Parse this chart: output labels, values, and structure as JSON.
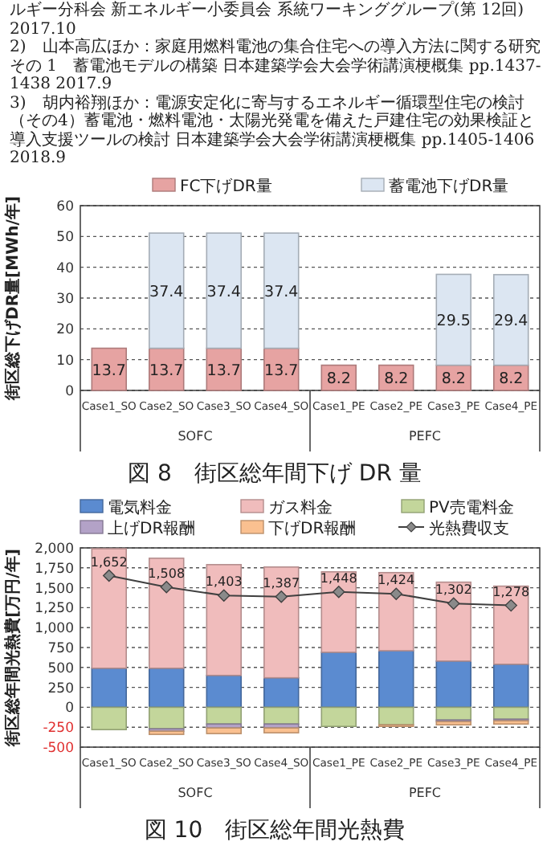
{
  "chart_data": [
    {
      "type": "other",
      "annotations": [
        "ルギー分科会 新エネルギー小委員会 系統ワーキンググループ(第 12回) 2017.10",
        "2)　山本高広ほか：家庭用燃料電池の集合住宅への導入方法に関する研究その 1　蓄電池モデルの構築 日本建築学会大会学術講演梗概集 pp.1437-1438 2017.9",
        "3)　胡内裕翔ほか：電源安定化に寄与するエネルギー循環型住宅の検討（その4）蓄電池・燃料電池・太陽光発電を備えた戸建住宅の効果検証と導入支援ツールの検討 日本建築学会大会学術講演梗概集 pp.1405-1406 2018.9"
      ]
    },
    {
      "type": "bar",
      "title": "図 8　街区総年間下げ DR 量",
      "ylabel": "街区総下げDR量[MWh/年]",
      "stacked": true,
      "data_labels": true,
      "grid": "y",
      "legend": "top",
      "categories": [
        "Case1_SO",
        "Case2_SO",
        "Case3_SO",
        "Case4_SO",
        "Case1_PE",
        "Case2_PE",
        "Case3_PE",
        "Case4_PE"
      ],
      "annotations": [
        "SOFC",
        "PEFC"
      ],
      "ylim": [
        0,
        60
      ],
      "yticks": [
        0,
        10,
        20,
        30,
        40,
        50,
        60
      ],
      "series": [
        {
          "name": "FC下げDR量",
          "color": "#e6a3a2",
          "values": [
            13.7,
            13.7,
            13.7,
            13.7,
            8.2,
            8.2,
            8.2,
            8.2
          ]
        },
        {
          "name": "蓄電池下げDR量",
          "color": "#dce6f2",
          "values": [
            null,
            37.4,
            37.4,
            37.4,
            null,
            null,
            29.5,
            29.4
          ]
        }
      ]
    },
    {
      "type": "bar",
      "title": "図 10　街区総年間光熱費",
      "ylabel": "街区総年間光熱費[万円/年]",
      "stacked": true,
      "grid": "y",
      "legend": "top",
      "categories": [
        "Case1_SO",
        "Case2_SO",
        "Case3_SO",
        "Case4_SO",
        "Case1_PE",
        "Case2_PE",
        "Case3_PE",
        "Case4_PE"
      ],
      "annotations": [
        "SOFC",
        "PEFC"
      ],
      "ylim": [
        -500,
        2000
      ],
      "yticks": [
        {
          "value": -500,
          "label": "-500"
        },
        {
          "value": -250,
          "label": "-250"
        },
        0,
        {
          "value": 250,
          "label": "250"
        },
        {
          "value": 500,
          "label": "500"
        },
        {
          "value": 750,
          "label": "750"
        },
        {
          "value": 1000,
          "label": "1,000"
        },
        {
          "value": 1250,
          "label": "1,250"
        },
        {
          "value": 1500,
          "label": "1,500"
        },
        {
          "value": 1750,
          "label": "1,750"
        },
        {
          "value": 2000,
          "label": "2,000"
        }
      ],
      "series": [
        {
          "name": "電気料金",
          "color": "#5b8bd0",
          "values": [
            490,
            490,
            400,
            370,
            690,
            710,
            580,
            540
          ]
        },
        {
          "name": "ガス料金",
          "color": "#f0bcbc",
          "values": [
            1500,
            1380,
            1390,
            1390,
            1010,
            980,
            990,
            980
          ]
        },
        {
          "name": "PV売電料金",
          "color": "#c3d69b",
          "values": [
            -280,
            -270,
            -210,
            -210,
            -240,
            -220,
            -160,
            -150
          ]
        },
        {
          "name": "上げDR報酬",
          "color": "#b3a2c7",
          "values": [
            null,
            -30,
            -50,
            -50,
            null,
            null,
            -20,
            -20
          ]
        },
        {
          "name": "下げDR報酬",
          "color": "#fac090",
          "values": [
            null,
            -40,
            -70,
            -60,
            null,
            -20,
            -40,
            -40
          ]
        },
        {
          "name": "光熱費収支",
          "type": "line",
          "color": "#404040",
          "marker": "diamond",
          "values": [
            1652,
            1508,
            1403,
            1387,
            1448,
            1424,
            1302,
            1278
          ],
          "value_labels": [
            "1,652",
            "1,508",
            "1,403",
            "1,387",
            "1,448",
            "1,424",
            "1,302",
            "1,278"
          ]
        }
      ]
    }
  ]
}
